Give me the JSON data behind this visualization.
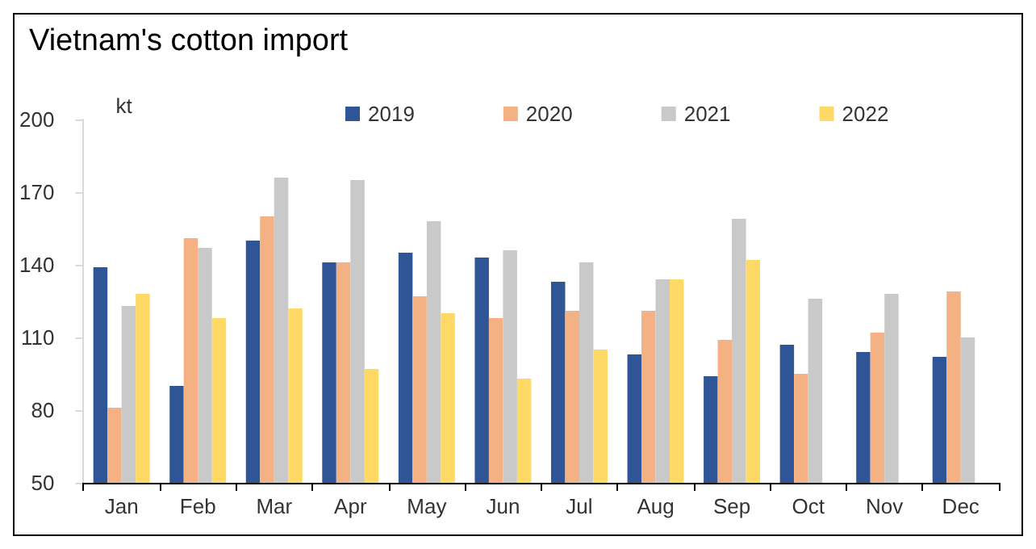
{
  "chart_data": {
    "type": "bar",
    "title": "Vietnam's cotton import",
    "ylabel": "kt",
    "categories": [
      "Jan",
      "Feb",
      "Mar",
      "Apr",
      "May",
      "Jun",
      "Jul",
      "Aug",
      "Sep",
      "Oct",
      "Nov",
      "Dec"
    ],
    "series": [
      {
        "name": "2019",
        "color": "#2f5597",
        "values": [
          139,
          90,
          150,
          141,
          145,
          143,
          133,
          103,
          94,
          107,
          104,
          102
        ]
      },
      {
        "name": "2020",
        "color": "#f4b183",
        "values": [
          81,
          151,
          160,
          141,
          127,
          118,
          121,
          121,
          109,
          95,
          112,
          129
        ]
      },
      {
        "name": "2021",
        "color": "#c9c9c9",
        "values": [
          123,
          147,
          176,
          175,
          158,
          146,
          141,
          134,
          159,
          126,
          128,
          110
        ]
      },
      {
        "name": "2022",
        "color": "#ffd966",
        "values": [
          128,
          118,
          122,
          97,
          120,
          93,
          105,
          134,
          142,
          null,
          null,
          null
        ]
      }
    ],
    "ylim": [
      50,
      200
    ],
    "yticks": [
      50,
      80,
      110,
      140,
      170,
      200
    ],
    "grid": false,
    "legend": "top"
  }
}
